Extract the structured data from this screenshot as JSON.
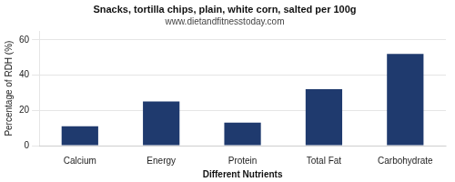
{
  "chart_data": {
    "type": "bar",
    "title": "Snacks, tortilla chips, plain, white corn, salted per 100g",
    "subtitle": "www.dietandfitnesstoday.com",
    "categories": [
      "Calcium",
      "Energy",
      "Protein",
      "Total Fat",
      "Carbohydrate"
    ],
    "values": [
      11,
      25,
      13,
      32,
      52
    ],
    "color": "#1f3a6e",
    "xlabel": "Different Nutrients",
    "ylabel": "Percentage of RDH (%)",
    "ylim": [
      0,
      65
    ],
    "yticks": [
      0,
      20,
      40,
      60
    ],
    "grid": true
  }
}
